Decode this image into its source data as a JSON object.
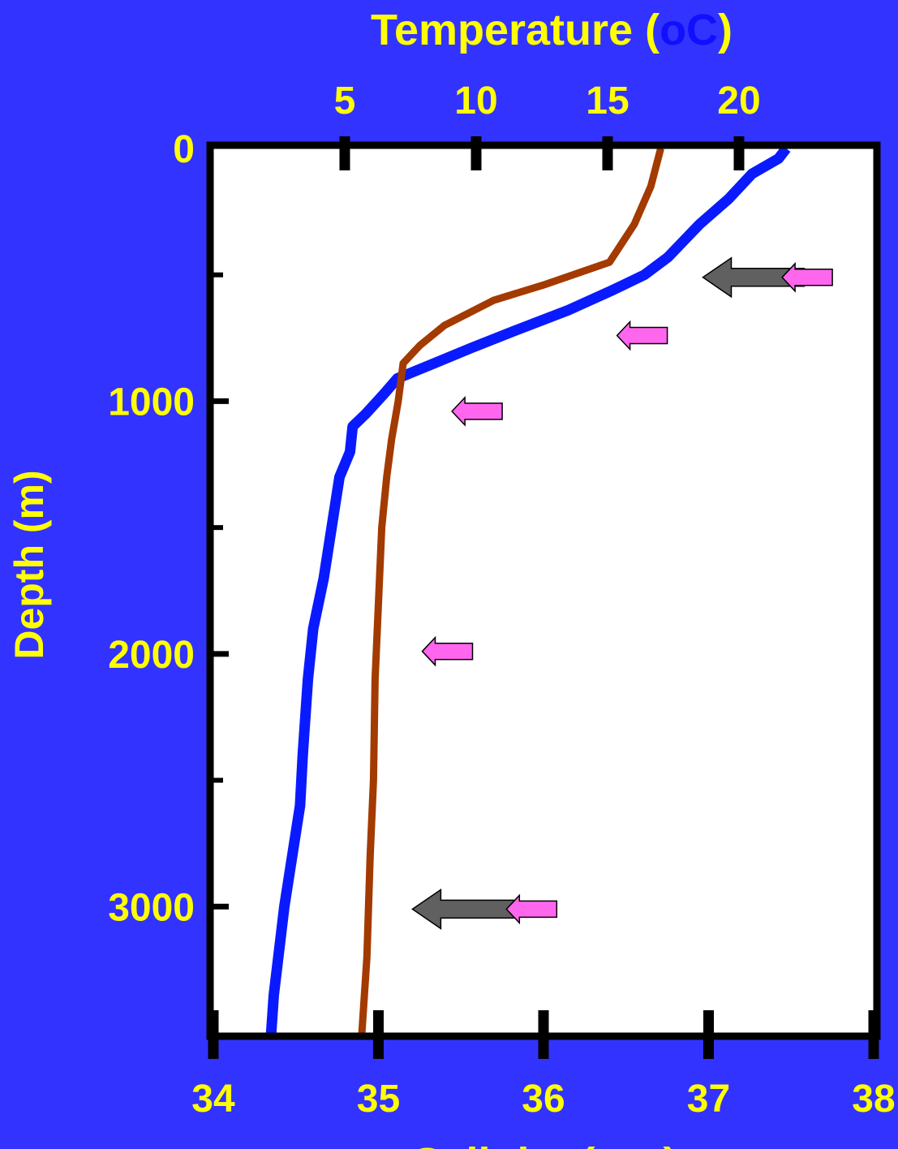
{
  "chart_data": {
    "type": "line",
    "title_prefix": "Temperature (",
    "title_unit": "oC",
    "title_suffix": ")",
    "xlabel_prefix": "Salinity (",
    "xlabel_unit": "ppt",
    "xlabel_suffix": ")",
    "ylabel": "Depth (m)",
    "temperature_axis": {
      "range": [
        0,
        23
      ],
      "ticks": [
        5,
        10,
        15,
        20
      ]
    },
    "salinity_axis": {
      "range": [
        34,
        38
      ],
      "ticks": [
        34,
        35,
        36,
        37,
        38
      ]
    },
    "depth_axis": {
      "range": [
        0,
        3500
      ],
      "reversed": true,
      "labeled_ticks": [
        0,
        1000,
        2000,
        3000
      ],
      "minor_ticks": [
        500,
        1500,
        2500
      ]
    },
    "series": [
      {
        "id": "temperature",
        "axis": "temperature",
        "color": "#0a1aff",
        "points": [
          [
            21.8,
            0
          ],
          [
            21.5,
            40
          ],
          [
            20.5,
            100
          ],
          [
            19.6,
            200
          ],
          [
            18.5,
            300
          ],
          [
            17.3,
            430
          ],
          [
            16.4,
            500
          ],
          [
            15.2,
            560
          ],
          [
            13.5,
            640
          ],
          [
            11.5,
            720
          ],
          [
            9.8,
            790
          ],
          [
            8.4,
            850
          ],
          [
            7.0,
            910
          ],
          [
            6.5,
            970
          ],
          [
            5.8,
            1050
          ],
          [
            5.3,
            1100
          ],
          [
            5.2,
            1200
          ],
          [
            4.8,
            1300
          ],
          [
            4.5,
            1500
          ],
          [
            4.2,
            1700
          ],
          [
            3.8,
            1900
          ],
          [
            3.6,
            2100
          ],
          [
            3.4,
            2400
          ],
          [
            3.3,
            2600
          ],
          [
            2.7,
            3000
          ],
          [
            2.3,
            3350
          ],
          [
            2.2,
            3500
          ]
        ]
      },
      {
        "id": "salinity",
        "axis": "salinity",
        "color": "#a33a00",
        "points": [
          [
            36.71,
            0
          ],
          [
            36.65,
            150
          ],
          [
            36.55,
            300
          ],
          [
            36.4,
            450
          ],
          [
            36.0,
            540
          ],
          [
            35.7,
            600
          ],
          [
            35.4,
            700
          ],
          [
            35.25,
            780
          ],
          [
            35.15,
            850
          ],
          [
            35.12,
            1000
          ],
          [
            35.08,
            1150
          ],
          [
            35.05,
            1300
          ],
          [
            35.02,
            1500
          ],
          [
            35.0,
            1800
          ],
          [
            34.98,
            2100
          ],
          [
            34.97,
            2500
          ],
          [
            34.95,
            2800
          ],
          [
            34.93,
            3200
          ],
          [
            34.9,
            3500
          ]
        ]
      }
    ],
    "arrows": [
      {
        "id": "arrow-pink-1",
        "color": "#ff66ee",
        "kind": "pink",
        "depth": 510,
        "salinity": 37.75
      },
      {
        "id": "arrow-pink-2",
        "color": "#ff66ee",
        "kind": "pink",
        "depth": 740,
        "salinity": 36.75
      },
      {
        "id": "arrow-pink-3",
        "color": "#ff66ee",
        "kind": "pink",
        "depth": 1040,
        "salinity": 35.75
      },
      {
        "id": "arrow-pink-4",
        "color": "#ff66ee",
        "kind": "pink",
        "depth": 1990,
        "salinity": 35.57
      },
      {
        "id": "arrow-pink-5",
        "color": "#ff66ee",
        "kind": "pink",
        "depth": 3010,
        "salinity": 36.08
      },
      {
        "id": "arrow-gray-1",
        "color": "#606060",
        "kind": "gray",
        "depth": 510,
        "salinity": 37.58
      },
      {
        "id": "arrow-gray-2",
        "color": "#606060",
        "kind": "gray",
        "depth": 3010,
        "salinity": 35.82
      }
    ],
    "grid": false
  },
  "colors": {
    "background": "#3333ff",
    "label_yellow": "#ffff00",
    "title_unit_blue": "#1010ff",
    "xlabel_unit_red": "#cc0000",
    "plot_area": "#ffffff",
    "axis_frame": "#000000"
  }
}
